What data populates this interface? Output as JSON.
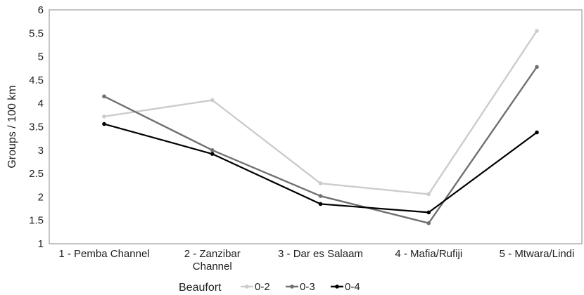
{
  "chart_data": {
    "type": "line",
    "title": "",
    "xlabel": "",
    "ylabel": "Groups / 100 km",
    "ylim": [
      1,
      6
    ],
    "yticks": [
      "1",
      "1.5",
      "2",
      "2.5",
      "3",
      "3.5",
      "4",
      "4.5",
      "5",
      "5.5",
      "6"
    ],
    "grid": false,
    "categories": [
      [
        "1 - Pemba Channel"
      ],
      [
        "2 - Zanzibar",
        "Channel"
      ],
      [
        "3 - Dar es Salaam"
      ],
      [
        "4 - Mafia/Rufiji"
      ],
      [
        "5 - Mtwara/Lindi"
      ]
    ],
    "legend": {
      "title": "Beaufort",
      "placement": "bottom"
    },
    "series": [
      {
        "name": "0-2",
        "color": "#cccccc",
        "values": [
          3.72,
          4.07,
          2.29,
          2.06,
          5.55
        ]
      },
      {
        "name": "0-3",
        "color": "#707070",
        "values": [
          4.15,
          3.0,
          2.02,
          1.44,
          4.78
        ]
      },
      {
        "name": "0-4",
        "color": "#000000",
        "values": [
          3.56,
          2.92,
          1.85,
          1.67,
          3.38
        ]
      }
    ]
  }
}
